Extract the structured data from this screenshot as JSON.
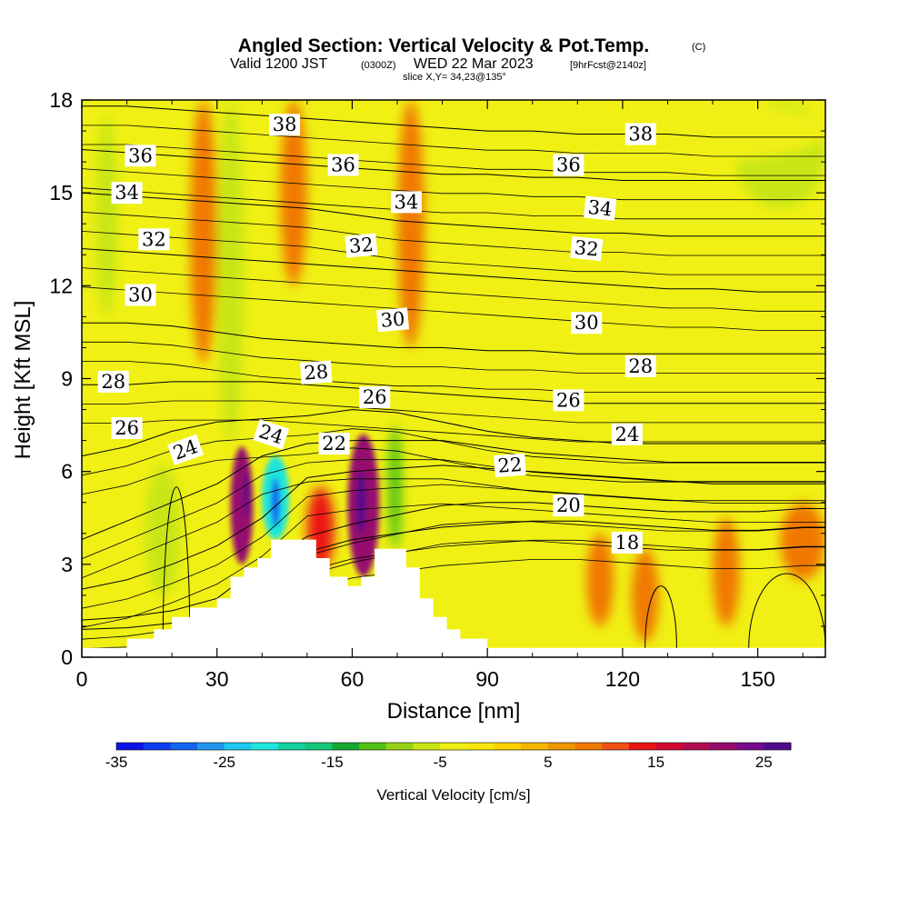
{
  "title": {
    "main": "Angled Section: Vertical Velocity & Pot.Temp.",
    "copyright": "(C)",
    "valid_prefix": "Valid 1200 JST",
    "valid_utc": "(0300Z)",
    "valid_date": "WED 22 Mar 2023",
    "forecast": "[9hrFcst@2140z]",
    "slice": "slice X,Y= 34,23@135°"
  },
  "chart_data": {
    "type": "heatmap",
    "xlabel": "Distance [nm]",
    "ylabel": "Height [Kft MSL]",
    "xlim": [
      0,
      165
    ],
    "ylim": [
      0,
      18
    ],
    "x_ticks": [
      0,
      30,
      60,
      90,
      120,
      150
    ],
    "y_ticks": [
      0,
      3,
      6,
      9,
      12,
      15,
      18
    ],
    "colorbar": {
      "label": "Vertical Velocity [cm/s]",
      "ticks": [
        -35,
        -25,
        -15,
        -5,
        5,
        15,
        25
      ],
      "range": [
        -35,
        27.5
      ],
      "colors": [
        "#0a14e6",
        "#0f3cf0",
        "#1464f0",
        "#1e96f0",
        "#1ec8f0",
        "#1ee6dc",
        "#14d2a0",
        "#14c878",
        "#14aa32",
        "#50c314",
        "#96d214",
        "#c8e614",
        "#f0f014",
        "#fae600",
        "#fad200",
        "#f5b400",
        "#f09600",
        "#f07800",
        "#f05014",
        "#eb1414",
        "#d20a32",
        "#b40a50",
        "#960a6e",
        "#780a8c",
        "#500a8c"
      ]
    },
    "velocity_cells": [
      {
        "x": [
          33,
          38
        ],
        "y": [
          3.0,
          6.8
        ],
        "w": 22
      },
      {
        "x": [
          36,
          37
        ],
        "y": [
          4.5,
          6.0
        ],
        "w": 25
      },
      {
        "x": [
          40,
          46
        ],
        "y": [
          3.8,
          6.5
        ],
        "w": -22
      },
      {
        "x": [
          42,
          44
        ],
        "y": [
          4.2,
          5.8
        ],
        "w": -28
      },
      {
        "x": [
          50,
          56
        ],
        "y": [
          2.8,
          5.5
        ],
        "w": 14
      },
      {
        "x": [
          59,
          66
        ],
        "y": [
          2.6,
          7.2
        ],
        "w": 20
      },
      {
        "x": [
          61,
          63
        ],
        "y": [
          4.0,
          6.0
        ],
        "w": 26
      },
      {
        "x": [
          68,
          71
        ],
        "y": [
          3.5,
          7.5
        ],
        "w": -12
      },
      {
        "x": [
          3,
          8
        ],
        "y": [
          11.0,
          17.5
        ],
        "w": -6
      },
      {
        "x": [
          14,
          22
        ],
        "y": [
          2.0,
          6.2
        ],
        "w": -7
      },
      {
        "x": [
          145,
          165
        ],
        "y": [
          14.5,
          18.0
        ],
        "w": -6
      },
      {
        "x": [
          108,
          165
        ],
        "y": [
          16.0,
          18.0
        ],
        "w": -5
      },
      {
        "x": [
          24,
          30
        ],
        "y": [
          9.5,
          18.0
        ],
        "w": 8
      },
      {
        "x": [
          30,
          36
        ],
        "y": [
          7.0,
          18.0
        ],
        "w": -6
      },
      {
        "x": [
          44,
          50
        ],
        "y": [
          12.0,
          18.0
        ],
        "w": 9
      },
      {
        "x": [
          62,
          68
        ],
        "y": [
          10.5,
          18.0
        ],
        "w": -5
      },
      {
        "x": [
          70,
          76
        ],
        "y": [
          10.0,
          18.0
        ],
        "w": 9
      },
      {
        "x": [
          112,
          118
        ],
        "y": [
          1.0,
          4.0
        ],
        "w": 9
      },
      {
        "x": [
          122,
          128
        ],
        "y": [
          0.5,
          3.5
        ],
        "w": 8
      },
      {
        "x": [
          140,
          146
        ],
        "y": [
          1.0,
          4.5
        ],
        "w": 8
      },
      {
        "x": [
          155,
          165
        ],
        "y": [
          2.5,
          5.0
        ],
        "w": 9
      }
    ],
    "terrain": [
      [
        0,
        0.3
      ],
      [
        10,
        0.3
      ],
      [
        10,
        0.6
      ],
      [
        16,
        0.6
      ],
      [
        16,
        0.9
      ],
      [
        20,
        0.9
      ],
      [
        20,
        1.3
      ],
      [
        24,
        1.3
      ],
      [
        24,
        1.6
      ],
      [
        30,
        1.6
      ],
      [
        30,
        1.9
      ],
      [
        33,
        1.9
      ],
      [
        33,
        2.6
      ],
      [
        36,
        2.6
      ],
      [
        36,
        2.9
      ],
      [
        39,
        2.9
      ],
      [
        39,
        3.2
      ],
      [
        42,
        3.2
      ],
      [
        42,
        3.8
      ],
      [
        52,
        3.8
      ],
      [
        52,
        3.2
      ],
      [
        55,
        3.2
      ],
      [
        55,
        2.6
      ],
      [
        59,
        2.6
      ],
      [
        59,
        2.3
      ],
      [
        62,
        2.3
      ],
      [
        62,
        2.6
      ],
      [
        65,
        2.6
      ],
      [
        65,
        3.5
      ],
      [
        72,
        3.5
      ],
      [
        72,
        2.9
      ],
      [
        75,
        2.9
      ],
      [
        75,
        1.9
      ],
      [
        78,
        1.9
      ],
      [
        78,
        1.3
      ],
      [
        81,
        1.3
      ],
      [
        81,
        0.9
      ],
      [
        84,
        0.9
      ],
      [
        84,
        0.6
      ],
      [
        90,
        0.6
      ],
      [
        90,
        0.3
      ],
      [
        165,
        0.3
      ]
    ],
    "isentropes": [
      {
        "value": 18,
        "y": [
          0.9,
          0.95,
          1.1,
          1.3,
          2.5,
          3.4,
          3.8,
          4.0,
          4.2,
          4.3,
          4.4,
          4.4,
          4.3,
          4.2,
          4.1,
          4.1,
          4.2,
          4.2
        ]
      },
      {
        "value": 20,
        "y": [
          1.2,
          1.3,
          1.5,
          1.9,
          3.0,
          3.9,
          4.3,
          4.6,
          4.9,
          5.0,
          5.0,
          4.9,
          4.8,
          4.7,
          4.7,
          4.7,
          4.8,
          4.8
        ]
      },
      {
        "value": 22,
        "y": [
          2.2,
          2.5,
          3.0,
          3.6,
          4.5,
          5.8,
          6.0,
          6.1,
          6.2,
          6.1,
          6.0,
          5.9,
          5.8,
          5.7,
          5.6,
          5.6,
          5.6,
          5.6
        ]
      },
      {
        "value": 24,
        "y": [
          3.8,
          4.4,
          5.0,
          5.6,
          6.5,
          6.9,
          7.0,
          7.0,
          7.0,
          6.8,
          6.6,
          6.5,
          6.4,
          6.3,
          6.3,
          6.3,
          6.3,
          6.3
        ]
      },
      {
        "value": 26,
        "y": [
          6.5,
          6.8,
          7.3,
          7.6,
          7.7,
          7.8,
          8.0,
          7.9,
          7.6,
          7.3,
          7.1,
          7.0,
          6.9,
          6.9,
          6.9,
          6.9,
          6.9,
          6.9
        ]
      },
      {
        "value": 28,
        "y": [
          8.8,
          8.8,
          8.9,
          8.9,
          8.9,
          8.8,
          8.7,
          8.6,
          8.5,
          8.4,
          8.3,
          8.2,
          8.2,
          8.2,
          8.2,
          8.2,
          8.2,
          8.2
        ]
      },
      {
        "value": 30,
        "y": [
          10.8,
          10.8,
          10.7,
          10.5,
          10.3,
          10.2,
          10.1,
          10.0,
          10.0,
          9.9,
          9.9,
          9.8,
          9.8,
          9.8,
          9.8,
          9.8,
          9.8,
          9.8
        ]
      },
      {
        "value": 32,
        "y": [
          13.2,
          13.1,
          13.0,
          12.9,
          12.8,
          12.7,
          12.6,
          12.5,
          12.4,
          12.3,
          12.2,
          12.1,
          12.0,
          11.9,
          11.9,
          11.8,
          11.8,
          11.8
        ]
      },
      {
        "value": 34,
        "y": [
          15.0,
          14.9,
          14.8,
          14.7,
          14.6,
          14.5,
          14.3,
          14.1,
          14.0,
          13.9,
          13.8,
          13.7,
          13.7,
          13.6,
          13.6,
          13.6,
          13.6,
          13.6
        ]
      },
      {
        "value": 36,
        "y": [
          16.4,
          16.3,
          16.2,
          16.1,
          16.0,
          15.9,
          15.8,
          15.7,
          15.6,
          15.6,
          15.5,
          15.5,
          15.4,
          15.4,
          15.4,
          15.4,
          15.4,
          15.4
        ]
      },
      {
        "value": 38,
        "y": [
          17.8,
          17.8,
          17.7,
          17.6,
          17.5,
          17.4,
          17.3,
          17.2,
          17.1,
          17.0,
          17.0,
          16.9,
          16.9,
          16.9,
          16.8,
          16.8,
          16.8,
          16.8
        ]
      }
    ],
    "isentrope_x": [
      0,
      10,
      20,
      30,
      40,
      50,
      60,
      70,
      80,
      90,
      100,
      110,
      120,
      130,
      140,
      150,
      160,
      165
    ],
    "contour_labels": [
      {
        "text": "38",
        "x": 45,
        "y": 17.2,
        "rot": 0
      },
      {
        "text": "38",
        "x": 124,
        "y": 16.9,
        "rot": 0
      },
      {
        "text": "36",
        "x": 13,
        "y": 16.2,
        "rot": 0
      },
      {
        "text": "36",
        "x": 58,
        "y": 15.9,
        "rot": 0
      },
      {
        "text": "36",
        "x": 108,
        "y": 15.9,
        "rot": 0
      },
      {
        "text": "34",
        "x": 10,
        "y": 15.0,
        "rot": 0
      },
      {
        "text": "34",
        "x": 72,
        "y": 14.7,
        "rot": 0
      },
      {
        "text": "34",
        "x": 115,
        "y": 14.5,
        "rot": 6
      },
      {
        "text": "32",
        "x": 16,
        "y": 13.5,
        "rot": 0
      },
      {
        "text": "32",
        "x": 62,
        "y": 13.3,
        "rot": -5
      },
      {
        "text": "32",
        "x": 112,
        "y": 13.2,
        "rot": 6
      },
      {
        "text": "30",
        "x": 13,
        "y": 11.7,
        "rot": 0
      },
      {
        "text": "30",
        "x": 69,
        "y": 10.9,
        "rot": -5
      },
      {
        "text": "30",
        "x": 112,
        "y": 10.8,
        "rot": 0
      },
      {
        "text": "28",
        "x": 7,
        "y": 8.9,
        "rot": 0
      },
      {
        "text": "28",
        "x": 52,
        "y": 9.2,
        "rot": -4
      },
      {
        "text": "28",
        "x": 124,
        "y": 9.4,
        "rot": 0
      },
      {
        "text": "26",
        "x": 10,
        "y": 7.4,
        "rot": 0
      },
      {
        "text": "26",
        "x": 65,
        "y": 8.4,
        "rot": 0
      },
      {
        "text": "26",
        "x": 108,
        "y": 8.3,
        "rot": 0
      },
      {
        "text": "24",
        "x": 23,
        "y": 6.7,
        "rot": -20
      },
      {
        "text": "24",
        "x": 42,
        "y": 7.2,
        "rot": 18
      },
      {
        "text": "24",
        "x": 121,
        "y": 7.2,
        "rot": 0
      },
      {
        "text": "22",
        "x": 56,
        "y": 6.9,
        "rot": 0
      },
      {
        "text": "22",
        "x": 95,
        "y": 6.2,
        "rot": -4
      },
      {
        "text": "20",
        "x": 108,
        "y": 4.9,
        "rot": 0
      },
      {
        "text": "18",
        "x": 121,
        "y": 3.7,
        "rot": 0
      }
    ],
    "closed_contours": [
      {
        "x": [
          125,
          132
        ],
        "y": [
          0.3,
          2.3
        ]
      },
      {
        "x": [
          18,
          24
        ],
        "y": [
          0.3,
          5.5
        ]
      },
      {
        "x": [
          148,
          165
        ],
        "y": [
          0.3,
          2.7
        ]
      }
    ]
  }
}
